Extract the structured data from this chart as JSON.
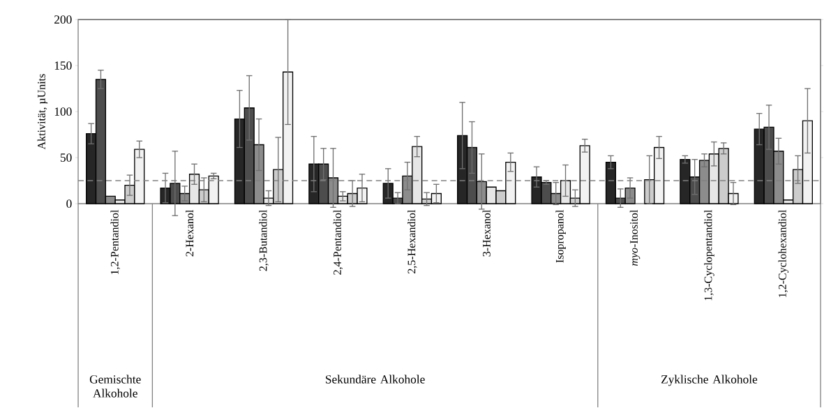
{
  "chart_data": {
    "type": "bar",
    "ylabel": "Aktivität, µUnits",
    "categories": [
      "1,2-Pentandiol",
      "2-Hexanol",
      "2,3-Butandiol",
      "2,4-Pentandiol",
      "2,5-Hexandiol",
      "3-Hexanol",
      "Isopropanol",
      "*myo*-Inositol",
      "1,3-Cyclopentandiol",
      "1,2-Cyclohexandiol"
    ],
    "series": [
      {
        "color": "#262626",
        "values": [
          76,
          17,
          92,
          43,
          22,
          74,
          29,
          45,
          48,
          81
        ],
        "errors": [
          11,
          16,
          31,
          30,
          16,
          36,
          11,
          7,
          4,
          17
        ]
      },
      {
        "color": "#4d4d4d",
        "values": [
          135,
          22,
          104,
          43,
          6,
          61,
          23,
          6,
          29,
          83
        ],
        "errors": [
          10,
          35,
          35,
          17,
          6,
          28,
          2,
          10,
          19,
          24
        ]
      },
      {
        "color": "#8c8c8c",
        "values": [
          8,
          11,
          64,
          28,
          30,
          24,
          11,
          17,
          47,
          57
        ],
        "errors": [
          null,
          8,
          28,
          32,
          15,
          30,
          12,
          11,
          7,
          14
        ]
      },
      {
        "color": "#e6e6e6",
        "values": [
          4,
          32,
          6,
          8,
          62,
          18,
          25,
          null,
          54,
          4
        ],
        "errors": [
          null,
          11,
          8,
          5,
          11,
          null,
          17,
          null,
          13,
          null
        ]
      },
      {
        "color": "#cccccc",
        "values": [
          20,
          15,
          37,
          11,
          5,
          14,
          6,
          26,
          60,
          37
        ],
        "errors": [
          11,
          13,
          35,
          14,
          7,
          null,
          9,
          26,
          6,
          15
        ]
      },
      {
        "color": "#f2f2f2",
        "values": [
          59,
          30,
          143,
          17,
          11,
          45,
          63,
          61,
          11,
          90
        ],
        "errors": [
          9,
          3,
          57,
          15,
          10,
          10,
          7,
          12,
          12,
          35
        ]
      }
    ],
    "ylim": [
      0,
      200
    ],
    "yticks": [
      0,
      50,
      100,
      150,
      200
    ],
    "ref_lines": [
      {
        "axis": "y",
        "value": 25,
        "color": "#808080",
        "line_style": "dashed"
      }
    ],
    "annotations": [
      "Gemischte Alkohole",
      "Sekundäre Alkohole",
      "Zyklische Alkohole"
    ]
  }
}
